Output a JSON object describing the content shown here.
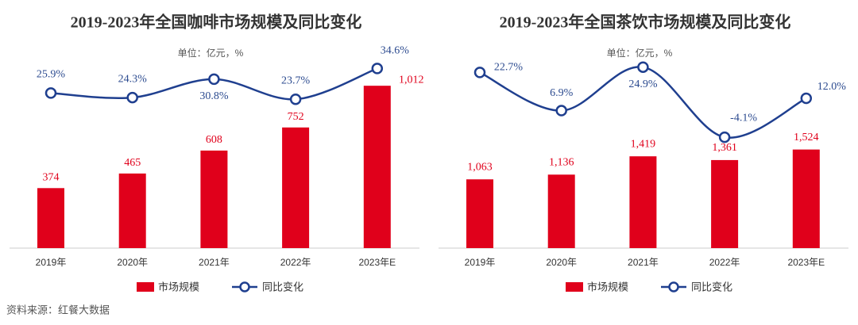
{
  "chart_data": [
    {
      "type": "bar",
      "title": "2019-2023年全国咖啡市场规模及同比变化",
      "unit": "单位：亿元，%",
      "categories": [
        "2019年",
        "2020年",
        "2021年",
        "2022年",
        "2023年E"
      ],
      "series": [
        {
          "name": "市场规模",
          "type": "bar",
          "color": "#e0001b",
          "values": [
            374,
            465,
            608,
            752,
            1012
          ],
          "value_labels": [
            "374",
            "465",
            "608",
            "752",
            "1,012"
          ]
        },
        {
          "name": "同比变化",
          "type": "line",
          "axis": "y2",
          "color": "#1f3f8f",
          "values": [
            25.9,
            24.3,
            30.8,
            23.7,
            34.6
          ],
          "value_labels": [
            "25.9%",
            "24.3%",
            "30.8%",
            "23.7%",
            "34.6%"
          ]
        }
      ],
      "ylim": [
        0,
        1250
      ],
      "y2lim": [
        -29,
        42
      ]
    },
    {
      "type": "bar",
      "title": "2019-2023年全国茶饮市场规模及同比变化",
      "unit": "单位：亿元，%",
      "categories": [
        "2019年",
        "2020年",
        "2021年",
        "2022年",
        "2023年E"
      ],
      "series": [
        {
          "name": "市场规模",
          "type": "bar",
          "color": "#e0001b",
          "values": [
            1063,
            1136,
            1419,
            1361,
            1524
          ],
          "value_labels": [
            "1,063",
            "1,136",
            "1,419",
            "1,361",
            "1,524"
          ]
        },
        {
          "name": "同比变化",
          "type": "line",
          "axis": "y2",
          "color": "#1f3f8f",
          "values": [
            22.7,
            6.9,
            24.9,
            -4.1,
            12.0
          ],
          "value_labels": [
            "22.7%",
            "6.9%",
            "24.9%",
            "-4.1%",
            "12.0%"
          ]
        }
      ],
      "ylim": [
        0,
        3100
      ],
      "y2lim": [
        -50,
        33
      ]
    }
  ],
  "source": "资料来源：红餐大数据"
}
